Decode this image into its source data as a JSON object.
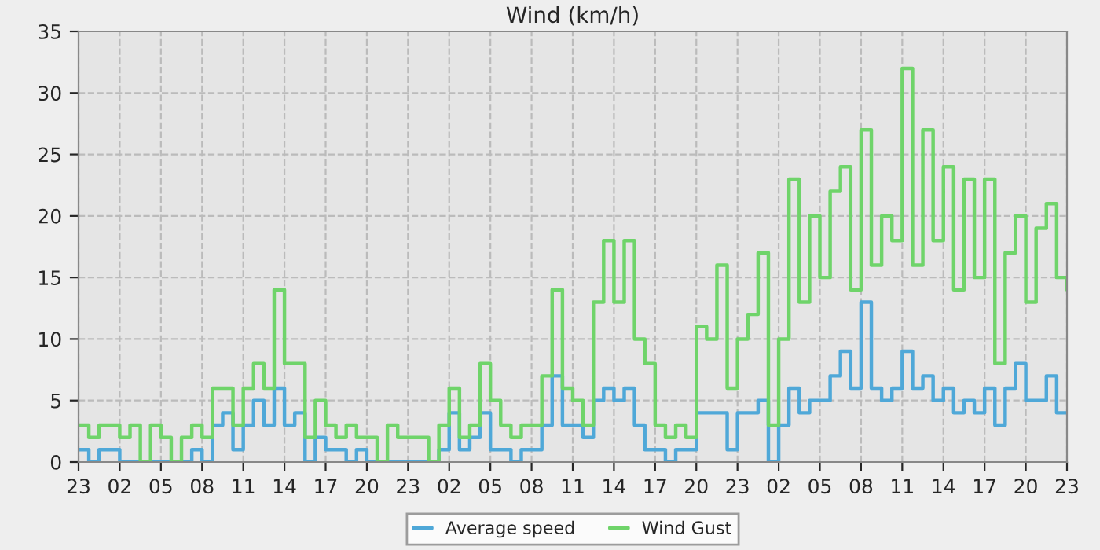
{
  "chart_data": {
    "type": "step",
    "title": "Wind (km/h)",
    "categories": [
      "23",
      null,
      null,
      null,
      "02",
      null,
      null,
      null,
      "05",
      null,
      null,
      null,
      "08",
      null,
      null,
      null,
      "11",
      null,
      null,
      null,
      "14",
      null,
      null,
      null,
      "17",
      null,
      null,
      null,
      "20",
      null,
      null,
      null,
      "23",
      null,
      null,
      null,
      "02",
      null,
      null,
      null,
      "05",
      null,
      null,
      null,
      "08",
      null,
      null,
      null,
      "11",
      null,
      null,
      null,
      "14",
      null,
      null,
      null,
      "17",
      null,
      null,
      null,
      "20",
      null,
      null,
      null,
      "23",
      null,
      null,
      null,
      "02",
      null,
      null,
      null,
      "05",
      null,
      null,
      null,
      "08",
      null,
      null,
      null,
      "11",
      null,
      null,
      null,
      "14",
      null,
      null,
      null,
      "17",
      null,
      null,
      null,
      "20",
      null,
      null,
      null,
      "23"
    ],
    "series": [
      {
        "name": "Average speed",
        "color": "#4fa8d8",
        "values": [
          1,
          0,
          1,
          1,
          0,
          0,
          0,
          0,
          0,
          0,
          0,
          1,
          0,
          3,
          4,
          1,
          3,
          5,
          3,
          6,
          3,
          4,
          0,
          2,
          1,
          1,
          0,
          1,
          0,
          0,
          0,
          0,
          0,
          0,
          0,
          1,
          4,
          1,
          2,
          4,
          1,
          1,
          0,
          1,
          1,
          3,
          7,
          3,
          3,
          2,
          5,
          6,
          5,
          6,
          3,
          1,
          1,
          0,
          1,
          1,
          4,
          4,
          4,
          1,
          4,
          4,
          5,
          0,
          3,
          6,
          4,
          5,
          5,
          7,
          9,
          6,
          13,
          6,
          5,
          6,
          9,
          6,
          7,
          5,
          6,
          4,
          5,
          4,
          6,
          3,
          6,
          8,
          5,
          5,
          7,
          4,
          4
        ]
      },
      {
        "name": "Wind Gust",
        "color": "#6fd46a",
        "values": [
          3,
          2,
          3,
          3,
          2,
          3,
          0,
          3,
          2,
          0,
          2,
          3,
          2,
          6,
          6,
          3,
          6,
          8,
          6,
          14,
          8,
          8,
          2,
          5,
          3,
          2,
          3,
          2,
          2,
          0,
          3,
          2,
          2,
          2,
          0,
          3,
          6,
          2,
          3,
          8,
          5,
          3,
          2,
          3,
          3,
          7,
          14,
          6,
          5,
          3,
          13,
          18,
          13,
          18,
          10,
          8,
          3,
          2,
          3,
          2,
          11,
          10,
          16,
          6,
          10,
          12,
          17,
          3,
          10,
          23,
          13,
          20,
          15,
          22,
          24,
          14,
          27,
          16,
          20,
          18,
          32,
          16,
          27,
          18,
          24,
          14,
          23,
          15,
          23,
          8,
          17,
          20,
          13,
          19,
          21,
          15,
          14
        ]
      }
    ],
    "ylim": [
      0,
      35
    ],
    "yticks": [
      0,
      5,
      10,
      15,
      20,
      25,
      30,
      35
    ],
    "grid": true,
    "legend": "bottom",
    "line_style": "solid",
    "marker": "none"
  }
}
